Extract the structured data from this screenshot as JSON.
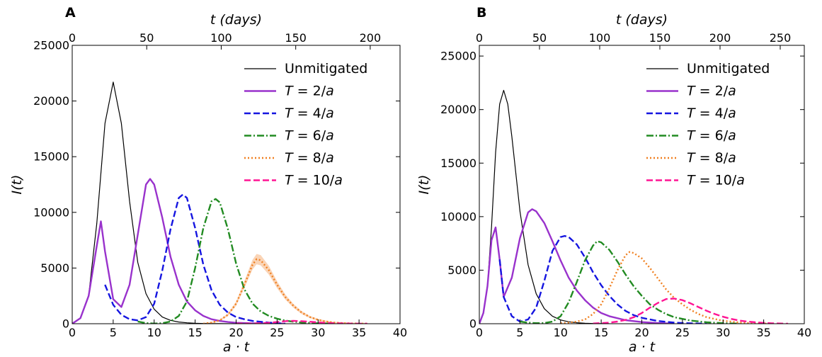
{
  "chart_data": [
    {
      "panel": "A",
      "type": "line",
      "xlabel": "a · t",
      "ylabel": "I(t)",
      "top_xlabel": "t (days)",
      "xlim": [
        0,
        40
      ],
      "ylim": [
        0,
        25000
      ],
      "xticks": [
        0,
        5,
        10,
        15,
        20,
        25,
        30,
        35,
        40
      ],
      "yticks": [
        0,
        5000,
        10000,
        15000,
        20000,
        25000
      ],
      "top_xlim": [
        0,
        220
      ],
      "top_xticks": [
        0,
        50,
        100,
        150,
        200
      ],
      "grid": false,
      "legend": "top-right",
      "series": [
        {
          "name": "Unmitigated",
          "color": "#000000",
          "style": "solid",
          "x": [
            0,
            1,
            2,
            3,
            4,
            5,
            6,
            7,
            8,
            9,
            10,
            11,
            12,
            13,
            14,
            15,
            16,
            17,
            18,
            19,
            20
          ],
          "y": [
            0,
            500,
            2500,
            9000,
            18000,
            21700,
            18000,
            11000,
            5500,
            2700,
            1300,
            600,
            300,
            150,
            80,
            40,
            20,
            10,
            5,
            2,
            0
          ]
        },
        {
          "name": "T = 2/a",
          "color": "#9932CC",
          "style": "solid",
          "x": [
            0,
            1,
            2,
            3,
            3.5,
            4,
            5,
            6,
            7,
            8,
            9,
            9.5,
            10,
            11,
            12,
            13,
            14,
            15,
            16,
            17,
            18,
            19,
            20,
            22,
            24,
            26
          ],
          "y": [
            0,
            500,
            2500,
            7000,
            9200,
            6500,
            2200,
            1500,
            3500,
            8000,
            12500,
            13000,
            12500,
            9500,
            6000,
            3500,
            2000,
            1200,
            700,
            400,
            250,
            150,
            80,
            30,
            10,
            0
          ]
        },
        {
          "name": "T = 4/a",
          "color": "#1515E0",
          "style": "dashed",
          "x": [
            4,
            5,
            6,
            7,
            8,
            9,
            10,
            11,
            12,
            13,
            13.5,
            14,
            15,
            16,
            17,
            18,
            19,
            20,
            21,
            22,
            24,
            26
          ],
          "y": [
            3500,
            1700,
            800,
            400,
            300,
            600,
            1800,
            4800,
            8500,
            11300,
            11600,
            11300,
            8600,
            5300,
            3000,
            1700,
            1000,
            600,
            400,
            250,
            100,
            0
          ]
        },
        {
          "name": "T = 6/a",
          "color": "#228B22",
          "style": "dashdot",
          "x": [
            8,
            9,
            10,
            11,
            12,
            13,
            14,
            15,
            16,
            17,
            17.5,
            18,
            19,
            20,
            21,
            22,
            23,
            24,
            25,
            26,
            27,
            28,
            30,
            32
          ],
          "y": [
            200,
            60,
            10,
            50,
            200,
            700,
            2000,
            5000,
            8600,
            11000,
            11200,
            10900,
            8500,
            5400,
            3100,
            1800,
            1100,
            700,
            450,
            280,
            180,
            110,
            40,
            0
          ]
        },
        {
          "name": "T = 8/a",
          "color": "#F08020",
          "style": "dotted",
          "x": [
            16,
            17,
            18,
            19,
            20,
            21,
            22,
            22.5,
            23,
            24,
            25,
            26,
            27,
            28,
            29,
            30,
            31,
            32,
            33,
            34,
            36
          ],
          "y": [
            0,
            100,
            300,
            800,
            1800,
            3500,
            5300,
            5800,
            5700,
            4800,
            3500,
            2400,
            1600,
            1000,
            600,
            350,
            200,
            100,
            60,
            30,
            0
          ]
        },
        {
          "name": "T = 10/a",
          "color": "#FF1493",
          "style": "dashed",
          "x": [
            20,
            22,
            24,
            25,
            26,
            27,
            28,
            29,
            30,
            31,
            32,
            34,
            36
          ],
          "y": [
            0,
            20,
            80,
            150,
            230,
            260,
            230,
            180,
            120,
            70,
            40,
            10,
            0
          ]
        }
      ]
    },
    {
      "panel": "B",
      "type": "line",
      "xlabel": "a · t",
      "ylabel": "I(t)",
      "top_xlabel": "t (days)",
      "xlim": [
        0,
        40
      ],
      "ylim": [
        0,
        26000
      ],
      "xticks": [
        0,
        5,
        10,
        15,
        20,
        25,
        30,
        35,
        40
      ],
      "yticks": [
        0,
        5000,
        10000,
        15000,
        20000,
        25000
      ],
      "top_xlim": [
        0,
        270
      ],
      "top_xticks": [
        0,
        50,
        100,
        150,
        200,
        250
      ],
      "grid": false,
      "legend": "top-right",
      "series": [
        {
          "name": "Unmitigated",
          "color": "#000000",
          "style": "solid",
          "x": [
            0,
            0.5,
            1,
            1.5,
            2,
            2.5,
            3,
            3.5,
            4,
            5,
            6,
            7,
            8,
            9,
            10,
            11,
            12,
            13,
            14,
            16
          ],
          "y": [
            0,
            1000,
            3500,
            9000,
            16000,
            20500,
            21800,
            20500,
            17500,
            10500,
            5500,
            2800,
            1400,
            700,
            350,
            180,
            90,
            40,
            20,
            0
          ]
        },
        {
          "name": "T = 2/a",
          "color": "#9932CC",
          "style": "solid",
          "x": [
            0,
            0.5,
            1,
            1.5,
            2,
            2.5,
            3,
            4,
            5,
            6,
            6.5,
            7,
            8,
            9,
            10,
            11,
            12,
            13,
            14,
            15,
            16,
            18,
            20,
            22,
            24
          ],
          "y": [
            0,
            1000,
            3500,
            7800,
            9000,
            6000,
            2500,
            4300,
            8000,
            10400,
            10700,
            10500,
            9400,
            7700,
            5900,
            4300,
            3100,
            2200,
            1500,
            1000,
            700,
            330,
            150,
            60,
            0
          ]
        },
        {
          "name": "T = 4/a",
          "color": "#1515E0",
          "style": "dashed",
          "x": [
            2.5,
            3,
            4,
            5,
            6,
            7,
            8,
            9,
            10,
            10.5,
            11,
            12,
            13,
            14,
            15,
            16,
            17,
            18,
            19,
            20,
            22,
            24,
            26,
            28
          ],
          "y": [
            6000,
            2500,
            700,
            200,
            400,
            1500,
            4000,
            6800,
            8100,
            8200,
            8100,
            7400,
            6200,
            4800,
            3600,
            2600,
            1800,
            1200,
            800,
            550,
            250,
            100,
            40,
            0
          ]
        },
        {
          "name": "T = 6/a",
          "color": "#228B22",
          "style": "dashdot",
          "x": [
            5,
            6,
            7,
            8,
            9,
            10,
            11,
            12,
            13,
            14,
            14.5,
            15,
            16,
            17,
            18,
            19,
            20,
            21,
            22,
            23,
            24,
            26,
            28,
            30,
            32
          ],
          "y": [
            200,
            100,
            50,
            60,
            200,
            700,
            2000,
            3900,
            5900,
            7300,
            7700,
            7600,
            6900,
            5800,
            4600,
            3500,
            2600,
            1800,
            1300,
            900,
            600,
            300,
            130,
            50,
            0
          ]
        },
        {
          "name": "T = 8/a",
          "color": "#F08020",
          "style": "dotted",
          "x": [
            10,
            11,
            12,
            13,
            14,
            15,
            16,
            17,
            18,
            18.5,
            19,
            20,
            21,
            22,
            23,
            24,
            25,
            26,
            27,
            28,
            30,
            32,
            34,
            36
          ],
          "y": [
            50,
            100,
            200,
            400,
            900,
            1800,
            3300,
            5000,
            6400,
            6700,
            6600,
            6100,
            5200,
            4200,
            3200,
            2400,
            1800,
            1300,
            900,
            600,
            270,
            110,
            40,
            0
          ]
        },
        {
          "name": "T = 10/a",
          "color": "#FF1493",
          "style": "dashed",
          "x": [
            14,
            16,
            17,
            18,
            19,
            20,
            21,
            22,
            23,
            24,
            25,
            26,
            27,
            28,
            29,
            30,
            31,
            32,
            33,
            34,
            35,
            36,
            38
          ],
          "y": [
            20,
            100,
            200,
            350,
            600,
            1000,
            1500,
            1950,
            2300,
            2350,
            2200,
            1900,
            1550,
            1200,
            900,
            650,
            450,
            300,
            200,
            130,
            80,
            40,
            0
          ]
        }
      ]
    }
  ],
  "legend_labels": [
    {
      "key": "Unmitigated",
      "text": "Unmitigated",
      "var": "",
      "rest": ""
    },
    {
      "key": "T2",
      "text": "",
      "var": "T",
      "rest": " = 2/",
      "a": "a"
    },
    {
      "key": "T4",
      "text": "",
      "var": "T",
      "rest": " = 4/",
      "a": "a"
    },
    {
      "key": "T6",
      "text": "",
      "var": "T",
      "rest": " = 6/",
      "a": "a"
    },
    {
      "key": "T8",
      "text": "",
      "var": "T",
      "rest": " = 8/",
      "a": "a"
    },
    {
      "key": "T10",
      "text": "",
      "var": "T",
      "rest": " = 10/",
      "a": "a"
    }
  ]
}
